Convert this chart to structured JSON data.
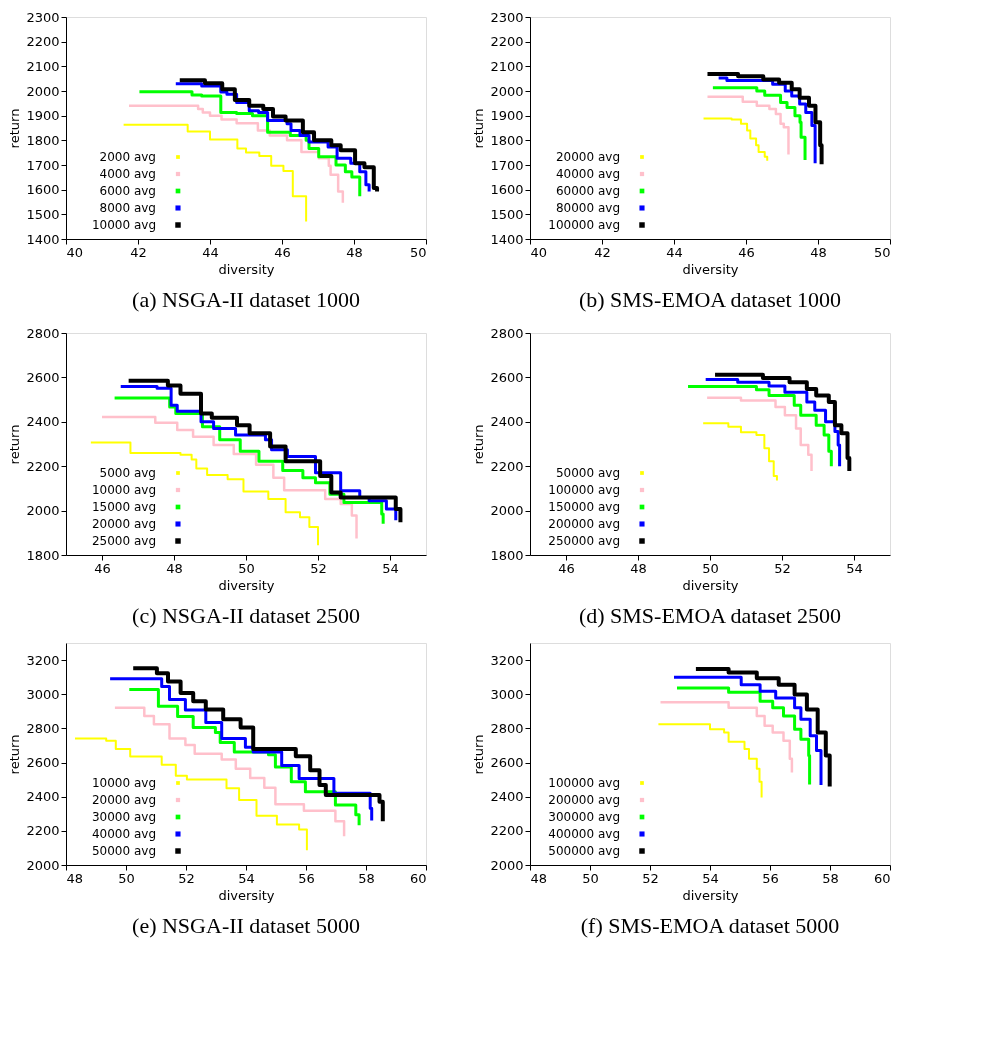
{
  "chart_data": [
    {
      "type": "step",
      "title": "(a) NSGA-II dataset 1000",
      "xlabel": "diversity",
      "ylabel": "return",
      "xlim": [
        40,
        50
      ],
      "xticks": [
        40,
        42,
        44,
        46,
        48,
        50
      ],
      "ylim": [
        1400,
        2300
      ],
      "yticks": [
        1400,
        1500,
        1600,
        1700,
        1800,
        1900,
        2000,
        2100,
        2200,
        2300
      ],
      "legend": "bottom left",
      "grid": false,
      "series": [
        {
          "name": "2000 avg",
          "color": "#ffff00",
          "x": [
            41.6,
            43.38,
            44.0,
            44.76,
            45.0,
            45.37,
            45.7,
            46.04,
            46.3,
            46.67
          ],
          "values": [
            1863,
            1836,
            1803,
            1767,
            1751,
            1736,
            1697,
            1676,
            1573,
            1471
          ]
        },
        {
          "name": "4000 avg",
          "color": "#ffc0cb",
          "x": [
            41.75,
            43.67,
            43.8,
            44.0,
            44.32,
            44.74,
            45.33,
            45.66,
            46.14,
            46.54,
            47.02,
            47.3,
            47.35,
            47.56,
            47.69
          ],
          "values": [
            1940,
            1927,
            1913,
            1900,
            1884,
            1869,
            1840,
            1820,
            1800,
            1753,
            1727,
            1697,
            1660,
            1593,
            1547
          ]
        },
        {
          "name": "6000 avg",
          "color": "#00ff00",
          "x": [
            42.04,
            43.5,
            43.77,
            44.3,
            44.74,
            45.18,
            45.6,
            46.23,
            46.67,
            46.75,
            47.02,
            47.5,
            47.76,
            47.94,
            48.16
          ],
          "values": [
            1997,
            1984,
            1980,
            1913,
            1909,
            1900,
            1833,
            1820,
            1800,
            1767,
            1733,
            1700,
            1673,
            1651,
            1573
          ]
        },
        {
          "name": "8000 avg",
          "color": "#0000ff",
          "x": [
            43.05,
            43.77,
            44.3,
            44.47,
            44.74,
            45.09,
            45.35,
            45.6,
            46.14,
            46.25,
            46.5,
            46.75,
            47.28,
            47.53,
            47.91,
            48.16,
            48.33,
            48.42
          ],
          "values": [
            2029,
            2020,
            1996,
            1987,
            1953,
            1920,
            1913,
            1880,
            1867,
            1840,
            1820,
            1793,
            1773,
            1727,
            1707,
            1673,
            1620,
            1593
          ]
        },
        {
          "name": "10000 avg",
          "color": "#000000",
          "x": [
            43.16,
            43.86,
            44.34,
            44.69,
            45.09,
            45.48,
            45.75,
            46.1,
            46.58,
            46.89,
            47.37,
            47.63,
            48.03,
            48.29,
            48.55,
            48.64
          ],
          "values": [
            2044,
            2031,
            2007,
            1964,
            1940,
            1927,
            1897,
            1880,
            1833,
            1800,
            1780,
            1760,
            1707,
            1691,
            1607,
            1593
          ]
        }
      ]
    },
    {
      "type": "step",
      "title": "(b) SMS-EMOA dataset 1000",
      "xlabel": "diversity",
      "ylabel": "return",
      "xlim": [
        40,
        50
      ],
      "xticks": [
        40,
        42,
        44,
        46,
        48,
        50
      ],
      "ylim": [
        1400,
        2300
      ],
      "yticks": [
        1400,
        1500,
        1600,
        1700,
        1800,
        1900,
        2000,
        2100,
        2200,
        2300
      ],
      "legend": "bottom left",
      "grid": false,
      "series": [
        {
          "name": "20000 avg",
          "color": "#ffff00",
          "x": [
            44.82,
            45.6,
            45.86,
            46.03,
            46.12,
            46.28,
            46.35,
            46.52,
            46.59
          ],
          "values": [
            1889,
            1884,
            1867,
            1840,
            1807,
            1780,
            1753,
            1733,
            1717
          ]
        },
        {
          "name": "40000 avg",
          "color": "#ffc0cb",
          "x": [
            44.93,
            45.91,
            46.3,
            46.65,
            46.83,
            46.96,
            47.05,
            47.18
          ],
          "values": [
            1977,
            1956,
            1940,
            1927,
            1907,
            1867,
            1853,
            1743
          ]
        },
        {
          "name": "60000 avg",
          "color": "#00ff00",
          "x": [
            45.08,
            46.3,
            46.52,
            46.96,
            47.14,
            47.36,
            47.5,
            47.53,
            47.64
          ],
          "values": [
            2013,
            2000,
            1983,
            1953,
            1933,
            1900,
            1873,
            1813,
            1720
          ]
        },
        {
          "name": "80000 avg",
          "color": "#0000ff",
          "x": [
            45.24,
            45.47,
            46.74,
            47.09,
            47.27,
            47.49,
            47.66,
            47.83,
            47.92
          ],
          "values": [
            2053,
            2043,
            2027,
            2000,
            1980,
            1947,
            1913,
            1860,
            1707
          ]
        },
        {
          "name": "100000 avg",
          "color": "#000000",
          "x": [
            44.93,
            45.78,
            46.48,
            46.92,
            47.27,
            47.49,
            47.75,
            47.93,
            48.06,
            48.1
          ],
          "values": [
            2069,
            2060,
            2047,
            2033,
            2007,
            1973,
            1940,
            1873,
            1780,
            1703
          ]
        }
      ]
    },
    {
      "type": "step",
      "title": "(c) NSGA-II dataset 2500",
      "xlabel": "diversity",
      "ylabel": "return",
      "xlim": [
        45,
        55
      ],
      "xticks": [
        46,
        48,
        50,
        52,
        54
      ],
      "ylim": [
        1800,
        2800
      ],
      "yticks": [
        1800,
        2000,
        2200,
        2400,
        2600,
        2800
      ],
      "legend": "bottom left",
      "grid": false,
      "series": [
        {
          "name": "5000 avg",
          "color": "#ffff00",
          "x": [
            45.69,
            46.79,
            48.18,
            48.49,
            48.62,
            48.92,
            49.49,
            49.93,
            50.62,
            51.1,
            51.5,
            51.76,
            52.0
          ],
          "values": [
            2307,
            2259,
            2252,
            2230,
            2190,
            2160,
            2141,
            2086,
            2052,
            1993,
            1970,
            1926,
            1844
          ]
        },
        {
          "name": "10000 avg",
          "color": "#ffc0cb",
          "x": [
            46.0,
            47.48,
            48.09,
            48.53,
            49.1,
            49.66,
            50.28,
            50.76,
            51.06,
            52.2,
            52.63,
            52.94,
            53.07
          ],
          "values": [
            2422,
            2396,
            2363,
            2333,
            2296,
            2255,
            2207,
            2148,
            2092,
            2052,
            2030,
            1978,
            1874
          ]
        },
        {
          "name": "15000 avg",
          "color": "#00ff00",
          "x": [
            46.35,
            47.88,
            48.05,
            48.79,
            49.27,
            49.84,
            50.36,
            51.02,
            51.58,
            51.93,
            52.33,
            52.72,
            53.77,
            53.81
          ],
          "values": [
            2507,
            2467,
            2437,
            2378,
            2319,
            2267,
            2222,
            2181,
            2148,
            2126,
            2074,
            2037,
            1985,
            1941
          ]
        },
        {
          "name": "20000 avg",
          "color": "#0000ff",
          "x": [
            46.52,
            47.53,
            47.92,
            48.09,
            48.75,
            49.1,
            49.71,
            50.54,
            50.71,
            51.15,
            51.93,
            52.63,
            53.16,
            53.42,
            53.9,
            54.16
          ],
          "values": [
            2559,
            2551,
            2474,
            2447,
            2400,
            2370,
            2341,
            2319,
            2274,
            2244,
            2170,
            2089,
            2059,
            2044,
            2007,
            1956
          ]
        },
        {
          "name": "25000 avg",
          "color": "#000000",
          "x": [
            46.74,
            47.83,
            48.18,
            48.75,
            49.05,
            49.75,
            50.1,
            50.67,
            51.1,
            52.06,
            52.37,
            52.63,
            54.16,
            54.29
          ],
          "values": [
            2585,
            2563,
            2526,
            2437,
            2418,
            2385,
            2348,
            2289,
            2222,
            2156,
            2081,
            2059,
            2007,
            1948
          ]
        }
      ]
    },
    {
      "type": "step",
      "title": "(d) SMS-EMOA dataset 2500",
      "xlabel": "diversity",
      "ylabel": "return",
      "xlim": [
        45,
        55
      ],
      "xticks": [
        46,
        48,
        50,
        52,
        54
      ],
      "ylim": [
        1800,
        2800
      ],
      "yticks": [
        1800,
        2000,
        2200,
        2400,
        2600,
        2800
      ],
      "legend": "bottom left",
      "grid": false,
      "series": [
        {
          "name": "50000 avg",
          "color": "#ffff00",
          "x": [
            49.81,
            50.51,
            50.86,
            51.29,
            51.51,
            51.64,
            51.77,
            51.86
          ],
          "values": [
            2393,
            2378,
            2353,
            2341,
            2281,
            2222,
            2156,
            2136
          ]
        },
        {
          "name": "100000 avg",
          "color": "#ffc0cb",
          "x": [
            49.92,
            50.86,
            51.82,
            52.08,
            52.39,
            52.52,
            52.73,
            52.82
          ],
          "values": [
            2508,
            2496,
            2467,
            2429,
            2370,
            2296,
            2252,
            2178
          ]
        },
        {
          "name": "150000 avg",
          "color": "#00ff00",
          "x": [
            49.39,
            51.29,
            51.64,
            52.34,
            52.52,
            52.95,
            53.17,
            53.3,
            53.37
          ],
          "values": [
            2559,
            2544,
            2519,
            2474,
            2430,
            2385,
            2341,
            2267,
            2200
          ]
        },
        {
          "name": "200000 avg",
          "color": "#0000ff",
          "x": [
            49.88,
            50.77,
            51.64,
            52.08,
            52.69,
            52.91,
            53.21,
            53.47,
            53.56,
            53.6
          ],
          "values": [
            2590,
            2578,
            2561,
            2533,
            2489,
            2452,
            2400,
            2356,
            2296,
            2200
          ]
        },
        {
          "name": "250000 avg",
          "color": "#000000",
          "x": [
            50.14,
            51.47,
            52.21,
            52.69,
            52.95,
            53.3,
            53.47,
            53.65,
            53.82,
            53.87
          ],
          "values": [
            2612,
            2597,
            2578,
            2548,
            2519,
            2489,
            2385,
            2348,
            2237,
            2178
          ]
        }
      ]
    },
    {
      "type": "step",
      "title": "(e) NSGA-II dataset 5000",
      "xlabel": "diversity",
      "ylabel": "return",
      "xlim": [
        48,
        60
      ],
      "xticks": [
        48,
        50,
        52,
        54,
        56,
        58,
        60
      ],
      "ylim": [
        2000,
        3300
      ],
      "yticks": [
        2000,
        2200,
        2400,
        2600,
        2800,
        3000,
        3200
      ],
      "legend": "bottom left",
      "grid": false,
      "series": [
        {
          "name": "10000 avg",
          "color": "#ffff00",
          "x": [
            48.3,
            49.34,
            49.66,
            50.14,
            51.19,
            51.66,
            52.03,
            53.35,
            53.77,
            54.35,
            55.03,
            55.77,
            56.03
          ],
          "values": [
            2741,
            2728,
            2680,
            2635,
            2587,
            2522,
            2501,
            2449,
            2381,
            2289,
            2237,
            2208,
            2086
          ]
        },
        {
          "name": "20000 avg",
          "color": "#ffc0cb",
          "x": [
            49.63,
            50.61,
            50.93,
            51.45,
            51.98,
            52.29,
            53.19,
            53.66,
            54.14,
            54.61,
            54.98,
            55.93,
            56.98,
            57.27
          ],
          "values": [
            2921,
            2872,
            2824,
            2741,
            2703,
            2651,
            2618,
            2564,
            2510,
            2452,
            2356,
            2318,
            2256,
            2169
          ]
        },
        {
          "name": "30000 avg",
          "color": "#00ff00",
          "x": [
            50.11,
            51.08,
            51.72,
            52.24,
            52.98,
            53.14,
            53.61,
            54.75,
            54.98,
            55.51,
            55.98,
            56.98,
            57.66,
            57.77
          ],
          "values": [
            3027,
            2930,
            2869,
            2805,
            2776,
            2718,
            2661,
            2645,
            2574,
            2487,
            2429,
            2352,
            2294,
            2233
          ]
        },
        {
          "name": "40000 avg",
          "color": "#0000ff",
          "x": [
            49.47,
            51.19,
            51.45,
            51.98,
            52.66,
            53.19,
            53.98,
            54.24,
            55.19,
            55.77,
            56.93,
            58.14,
            58.19
          ],
          "values": [
            3090,
            3046,
            2969,
            2907,
            2834,
            2741,
            2689,
            2661,
            2583,
            2506,
            2420,
            2333,
            2260
          ]
        },
        {
          "name": "50000 avg",
          "color": "#000000",
          "x": [
            50.24,
            51.03,
            51.4,
            51.82,
            52.24,
            52.66,
            53.24,
            53.82,
            54.24,
            55.66,
            56.14,
            56.45,
            56.66,
            58.45,
            58.56
          ],
          "values": [
            3152,
            3123,
            3075,
            3007,
            2959,
            2911,
            2853,
            2805,
            2680,
            2637,
            2555,
            2468,
            2410,
            2371,
            2256
          ]
        }
      ]
    },
    {
      "type": "step",
      "title": "(f) SMS-EMOA dataset 5000",
      "xlabel": "diversity",
      "ylabel": "return",
      "xlim": [
        48,
        60
      ],
      "xticks": [
        48,
        50,
        52,
        54,
        56,
        58,
        60
      ],
      "ylim": [
        2000,
        3300
      ],
      "yticks": [
        2000,
        2200,
        2400,
        2600,
        2800,
        3000,
        3200
      ],
      "legend": "bottom left",
      "grid": false,
      "series": [
        {
          "name": "100000 avg",
          "color": "#ffff00",
          "x": [
            52.28,
            54.0,
            54.47,
            54.62,
            55.15,
            55.3,
            55.56,
            55.65,
            55.72
          ],
          "values": [
            2824,
            2795,
            2776,
            2722,
            2680,
            2622,
            2564,
            2487,
            2395
          ]
        },
        {
          "name": "200000 avg",
          "color": "#ffc0cb",
          "x": [
            52.35,
            54.62,
            55.56,
            55.82,
            56.09,
            56.45,
            56.66,
            56.73
          ],
          "values": [
            2953,
            2921,
            2872,
            2815,
            2776,
            2728,
            2622,
            2541
          ]
        },
        {
          "name": "300000 avg",
          "color": "#00ff00",
          "x": [
            52.9,
            54.62,
            55.67,
            56.09,
            56.45,
            56.82,
            57.03,
            57.29,
            57.32
          ],
          "values": [
            3036,
            3011,
            2959,
            2921,
            2872,
            2795,
            2737,
            2641,
            2472
          ]
        },
        {
          "name": "400000 avg",
          "color": "#0000ff",
          "x": [
            52.8,
            55.04,
            55.67,
            56.19,
            56.82,
            57.03,
            57.34,
            57.55,
            57.7
          ],
          "values": [
            3099,
            3056,
            3017,
            2978,
            2921,
            2853,
            2757,
            2670,
            2468
          ]
        },
        {
          "name": "500000 avg",
          "color": "#000000",
          "x": [
            53.53,
            54.62,
            55.56,
            56.29,
            56.82,
            57.23,
            57.59,
            57.86,
            57.99
          ],
          "values": [
            3148,
            3127,
            3094,
            3056,
            2998,
            2911,
            2776,
            2641,
            2459
          ]
        }
      ]
    }
  ]
}
